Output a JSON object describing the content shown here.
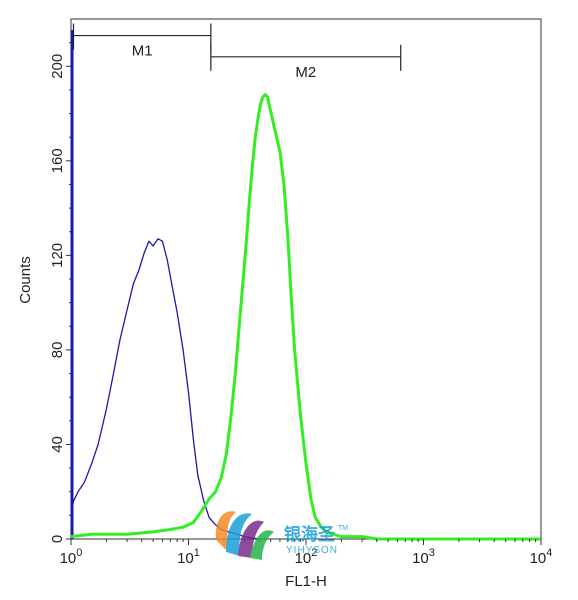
{
  "chart_data": {
    "type": "line",
    "xlabel": "FL1-H",
    "ylabel": "Counts",
    "xscale": "log",
    "xlim": [
      1,
      10000
    ],
    "ylim": [
      0,
      220
    ],
    "x_ticks": [
      {
        "value": 1,
        "base": "10",
        "exp": "0"
      },
      {
        "value": 10,
        "base": "10",
        "exp": "1"
      },
      {
        "value": 100,
        "base": "10",
        "exp": "2"
      },
      {
        "value": 1000,
        "base": "10",
        "exp": "3"
      },
      {
        "value": 10000,
        "base": "10",
        "exp": "4"
      }
    ],
    "y_ticks": [
      0,
      40,
      80,
      120,
      160,
      200
    ],
    "grid": false,
    "markers": [
      {
        "label": "M1",
        "x_start": 1.05,
        "x_end": 15.5,
        "level": 213
      },
      {
        "label": "M2",
        "x_start": 15.5,
        "x_end": 640,
        "level": 204
      }
    ],
    "series": [
      {
        "color": "#1a1aaa",
        "x": [
          1.0,
          1.05,
          1.15,
          1.3,
          1.5,
          1.7,
          2.0,
          2.3,
          2.6,
          3.0,
          3.4,
          3.8,
          4.2,
          4.6,
          5.0,
          5.5,
          6.0,
          6.6,
          7.2,
          8.0,
          9.0,
          10.0,
          11.0,
          12.0,
          13.5,
          15.0,
          17.0,
          19.0,
          22.0,
          26.0,
          30.0,
          40.0
        ],
        "y": [
          10,
          16,
          20,
          24,
          32,
          40,
          55,
          70,
          84,
          97,
          108,
          114,
          121,
          126,
          124,
          127,
          126,
          118,
          108,
          96,
          80,
          62,
          42,
          27,
          16,
          9,
          6,
          4,
          3,
          2,
          1,
          0
        ]
      },
      {
        "color": "#33ee22",
        "x": [
          1.0,
          1.5,
          2.0,
          3.0,
          5.0,
          7.0,
          9.0,
          11.0,
          13.0,
          15.0,
          17.0,
          19.0,
          21.0,
          23.0,
          25.0,
          27.0,
          29.0,
          31.0,
          33.0,
          35.0,
          37.0,
          39.0,
          41.0,
          43.0,
          45.0,
          47.0,
          50.0,
          55.0,
          60.0,
          65.0,
          70.0,
          75.0,
          80.0,
          90.0,
          100.0,
          110.0,
          120.0,
          135.0,
          150.0,
          170.0,
          200.0,
          240.0,
          300.0,
          400.0,
          600.0,
          1000.0,
          3000.0,
          10000.0
        ],
        "y": [
          1,
          2,
          2,
          2,
          3,
          4,
          5,
          7,
          12,
          17,
          20,
          26,
          36,
          52,
          70,
          90,
          108,
          125,
          143,
          158,
          170,
          178,
          184,
          187,
          188,
          187,
          181,
          172,
          164,
          150,
          128,
          102,
          80,
          52,
          32,
          17,
          9,
          5,
          3,
          2,
          1,
          1,
          1,
          0,
          0,
          0,
          0,
          0
        ]
      }
    ]
  },
  "watermark": {
    "chinese_text": "银海圣",
    "latin_text": "YIHYSON",
    "trademark": "TM",
    "colors": [
      "#f28c28",
      "#1aa0d8",
      "#7a2e8a",
      "#29b34a"
    ]
  }
}
